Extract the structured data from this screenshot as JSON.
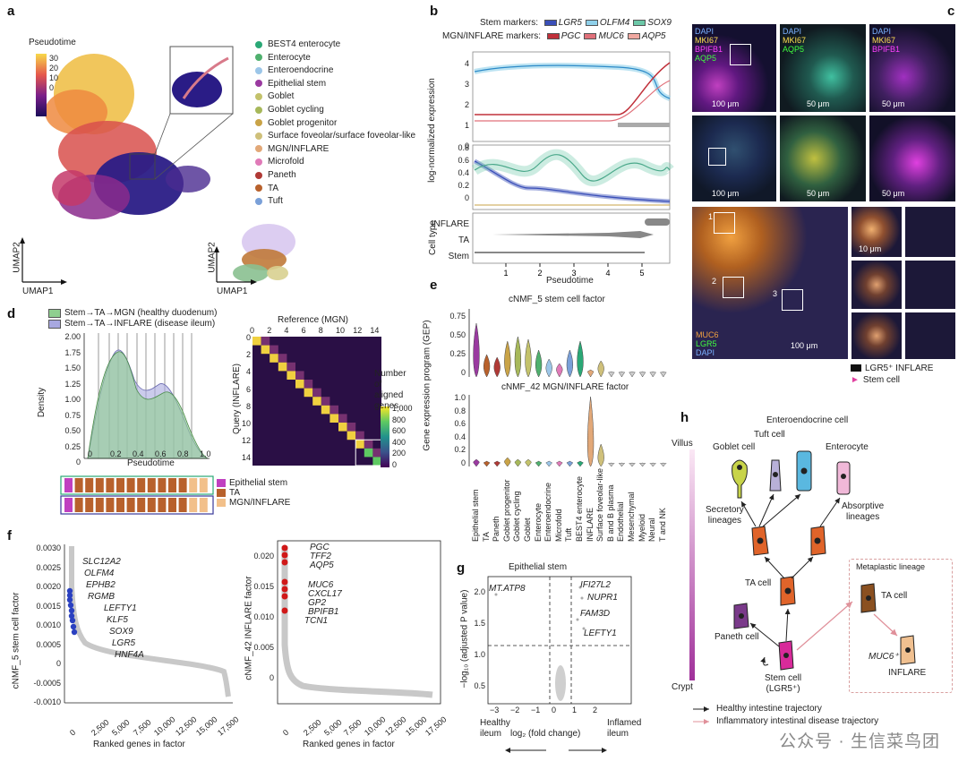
{
  "panel_letters": {
    "a": "a",
    "b": "b",
    "c": "c",
    "d": "d",
    "e": "e",
    "f": "f",
    "g": "g",
    "h": "h"
  },
  "panel_a": {
    "colorbar_title": "Pseudotime",
    "colorbar_ticks": [
      "30",
      "20",
      "10",
      "0"
    ],
    "umap2_label": "UMAP2",
    "umap1_label": "UMAP1",
    "legend": [
      {
        "label": "BEST4 enterocyte",
        "color": "#2aa876"
      },
      {
        "label": "Enterocyte",
        "color": "#4fb06e"
      },
      {
        "label": "Enteroendocrine",
        "color": "#9cc6e8"
      },
      {
        "label": "Epithelial stem",
        "color": "#9a3aa0"
      },
      {
        "label": "Goblet",
        "color": "#c3c26b"
      },
      {
        "label": "Goblet cycling",
        "color": "#a7b85a"
      },
      {
        "label": "Goblet progenitor",
        "color": "#c9a347"
      },
      {
        "label": "Surface foveolar/surface foveolar-like",
        "color": "#cfc07a"
      },
      {
        "label": "MGN/INFLARE",
        "color": "#e2a878"
      },
      {
        "label": "Microfold",
        "color": "#e07ab8"
      },
      {
        "label": "Paneth",
        "color": "#b03a36"
      },
      {
        "label": "TA",
        "color": "#b8612c"
      },
      {
        "label": "Tuft",
        "color": "#7aa0d8"
      }
    ]
  },
  "panel_b": {
    "stem_title": "Stem markers:",
    "mgn_title": "MGN/INFLARE markers:",
    "stem_markers": [
      {
        "label": "LGR5",
        "color": "#3a4fb8"
      },
      {
        "label": "OLFM4",
        "color": "#8fd0ea"
      },
      {
        "label": "SOX9",
        "color": "#6cc8a8"
      }
    ],
    "mgn_markers": [
      {
        "label": "PGC",
        "color": "#c0303a"
      },
      {
        "label": "MUC6",
        "color": "#e0707a"
      },
      {
        "label": "AQP5",
        "color": "#f0a8a0"
      }
    ],
    "ylabel": "log-normalized expression",
    "celltype_label": "Cell type",
    "celltype_rows": [
      "INFLARE",
      "TA",
      "Stem"
    ],
    "xlabel": "Pseudotime",
    "xticks": [
      "1",
      "2",
      "3",
      "4",
      "5"
    ],
    "yticks_top": [
      "4",
      "3",
      "2",
      "1",
      "0"
    ],
    "yticks_bottom": [
      "0.8",
      "0.6",
      "0.4",
      "0.2",
      "0"
    ]
  },
  "panel_c": {
    "labels": [
      {
        "id": "c1",
        "lines": [
          "DAPI",
          "MKI67",
          "BPIFB1",
          "AQP5"
        ]
      },
      {
        "id": "c2",
        "lines": [
          "DAPI",
          "MKI67",
          "AQP5"
        ]
      },
      {
        "id": "c3",
        "lines": [
          "DAPI",
          "MKI67",
          "BPIFB1"
        ]
      }
    ],
    "scale_100": "100 μm",
    "scale_50": "50 μm",
    "bottom_labels": [
      "MUC6",
      "LGR5",
      "DAPI"
    ],
    "region_labels": [
      "1",
      "2",
      "3"
    ],
    "inset_scale": "10 μm",
    "legend_inflare": "LGR5⁺ INFLARE",
    "legend_stem": "Stem cell"
  },
  "panel_d": {
    "legend": [
      {
        "label": "Stem→TA→MGN (healthy duodenum)",
        "color": "#8fcf8f"
      },
      {
        "label": "Stem→TA→INFLARE (disease ileum)",
        "color": "#a8a8e0"
      }
    ],
    "ylabel": "Density",
    "xlabel": "Pseudotime",
    "yticks": [
      "2.00",
      "1.75",
      "1.50",
      "1.25",
      "1.00",
      "0.75",
      "0.50",
      "0.25",
      "0"
    ],
    "xticks": [
      "0",
      "0.2",
      "0.4",
      "0.6",
      "0.8",
      "1.0"
    ],
    "strip_legend": [
      {
        "label": "Epithelial stem",
        "color": "#c040c0"
      },
      {
        "label": "TA",
        "color": "#b8612c"
      },
      {
        "label": "MGN/INFLARE",
        "color": "#f2c08a"
      }
    ],
    "heatmap_title": "Reference (MGN)",
    "heatmap_ylabel": "Query (INFLARE)",
    "heatmap_ticks": [
      "0",
      "2",
      "4",
      "6",
      "8",
      "10",
      "12",
      "14"
    ],
    "heatmap_cbar_title": [
      "Number of",
      "aligned",
      "genes"
    ],
    "heatmap_cbar_ticks": [
      "1,000",
      "800",
      "600",
      "400",
      "200",
      "0"
    ]
  },
  "panel_e": {
    "title_top": "cNMF_5 stem cell factor",
    "title_bottom": "cNMF_42 MGN/INFLARE factor",
    "ylabel": "Gene expression program (GEP)",
    "yticks_top": [
      "0.75",
      "0.50",
      "0.25",
      "0"
    ],
    "yticks_bottom": [
      "1.0",
      "0.8",
      "0.6",
      "0.4",
      "0.2",
      "0"
    ],
    "categories": [
      "Epithelial stem",
      "TA",
      "Paneth",
      "Goblet progenitor",
      "Goblet cycling",
      "Goblet",
      "Enterocyte",
      "Enteroendocrine",
      "Microfold",
      "Tuft",
      "BEST4 enterocyte",
      "INFLARE",
      "Surface foveolar-like",
      "B and B plasma",
      "Endothelial",
      "Mesenchymal",
      "Myeloid",
      "Neural",
      "T and NK"
    ],
    "colors": [
      "#9a3aa0",
      "#b8612c",
      "#b03a36",
      "#c9a347",
      "#a7b85a",
      "#c3c26b",
      "#4fb06e",
      "#9cc6e8",
      "#e07ab8",
      "#7aa0d8",
      "#2aa876",
      "#e2a878",
      "#cfc07a",
      "#cccccc",
      "#cccccc",
      "#cccccc",
      "#cccccc",
      "#cccccc",
      "#cccccc"
    ]
  },
  "panel_f": {
    "left": {
      "ylabel": "cNMF_5 stem cell factor",
      "xlabel": "Ranked genes in factor",
      "yticks": [
        "0.0030",
        "0.0025",
        "0.0020",
        "0.0015",
        "0.0010",
        "0.0005",
        "0",
        "-0.0005",
        "-0.0010"
      ],
      "xticks": [
        "0",
        "2,500",
        "5,000",
        "7,500",
        "10,000",
        "12,500",
        "15,000",
        "17,500"
      ],
      "genes": [
        "SLC12A2",
        "OLFM4",
        "EPHB2",
        "RGMB",
        "LEFTY1",
        "KLF5",
        "SOX9",
        "LGR5",
        "HNF4A"
      ]
    },
    "right": {
      "ylabel": "cNMF_42 INFLARE factor",
      "xlabel": "Ranked genes in factor",
      "yticks": [
        "0.020",
        "0.015",
        "0.010",
        "0.005",
        "0"
      ],
      "xticks": [
        "0",
        "2,500",
        "5,000",
        "7,500",
        "10,000",
        "12,500",
        "15,000",
        "17,500"
      ],
      "genes": [
        "PGC",
        "TFF2",
        "AQP5",
        "MUC6",
        "CXCL17",
        "GP2",
        "BPIFB1",
        "TCN1"
      ]
    }
  },
  "panel_g": {
    "title": "Epithelial stem",
    "ylabel": "−log₁₀ (adjusted P value)",
    "xlabel": "log₂ (fold change)",
    "yticks": [
      "2.0",
      "1.5",
      "1.0",
      "0.5",
      "0"
    ],
    "xticks": [
      "−3",
      "−2",
      "−1",
      "0",
      "1",
      "2"
    ],
    "genes_left": [
      "MT.ATP8"
    ],
    "genes_right": [
      "IFI27L2",
      "NUPR1",
      "FAM3D",
      "LEFTY1"
    ],
    "left_end": "Healthy ileum",
    "right_end": "Inflamed ileum"
  },
  "panel_h": {
    "axis_top": "Villus",
    "axis_bottom": "Crypt",
    "cells": {
      "enteroendocrine": "Enteroendocrine cell",
      "tuft": "Tuft cell",
      "goblet": "Goblet cell",
      "enterocyte": "Enterocyte",
      "secretory": [
        "Secretory",
        "lineages"
      ],
      "absorptive": [
        "Absorptive",
        "lineages"
      ],
      "ta": "TA cell",
      "paneth": "Paneth cell",
      "stem": [
        "Stem cell",
        "(LGR5⁺)"
      ],
      "metaplastic_title": "Metaplastic lineage",
      "meta_ta": "TA cell",
      "muc6": "MUC6⁺",
      "inflare": "INFLARE"
    },
    "legend_healthy": "Healthy intestine trajectory",
    "legend_inflam": "Inflammatory intestinal disease trajectory"
  },
  "watermark": "公众号 · 生信菜鸟团"
}
